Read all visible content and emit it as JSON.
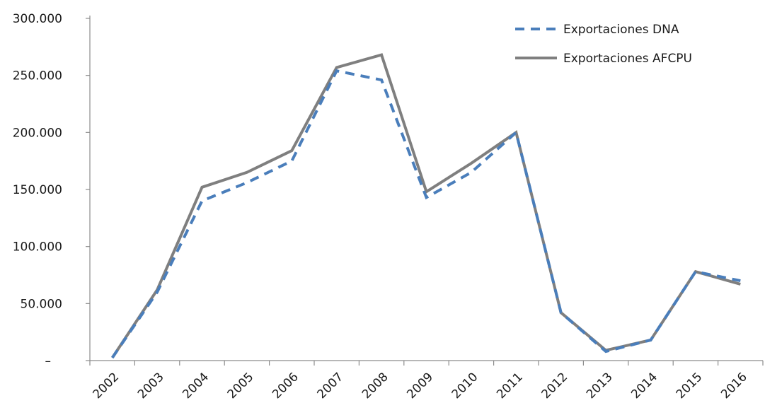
{
  "chart_data": {
    "type": "line",
    "title": "",
    "xlabel": "",
    "ylabel": "",
    "categories": [
      "2002",
      "2003",
      "2004",
      "2005",
      "2006",
      "2007",
      "2008",
      "2009",
      "2010",
      "2011",
      "2012",
      "2013",
      "2014",
      "2015",
      "2016"
    ],
    "series": [
      {
        "name": "Exportaciones DNA",
        "style": "dashed",
        "color": "#4a7ebb",
        "values": [
          2500,
          60000,
          140000,
          156000,
          175000,
          254000,
          246000,
          143000,
          165000,
          200000,
          42000,
          8000,
          18000,
          78000,
          70000
        ]
      },
      {
        "name": "Exportaciones AFCPU",
        "style": "solid",
        "color": "#7f7f7f",
        "values": [
          2500,
          62000,
          152000,
          165000,
          184000,
          257000,
          268000,
          148000,
          173000,
          200000,
          42000,
          9000,
          18000,
          78000,
          67000
        ]
      }
    ],
    "ylim": [
      0,
      300000
    ],
    "y_ticks": [
      {
        "value": 0,
        "label": "–"
      },
      {
        "value": 50000,
        "label": "50.000"
      },
      {
        "value": 100000,
        "label": "100.000"
      },
      {
        "value": 150000,
        "label": "150.000"
      },
      {
        "value": 200000,
        "label": "200.000"
      },
      {
        "value": 250000,
        "label": "250.000"
      },
      {
        "value": 300000,
        "label": "300.000"
      }
    ],
    "grid": false,
    "legend_position": "top-right"
  }
}
